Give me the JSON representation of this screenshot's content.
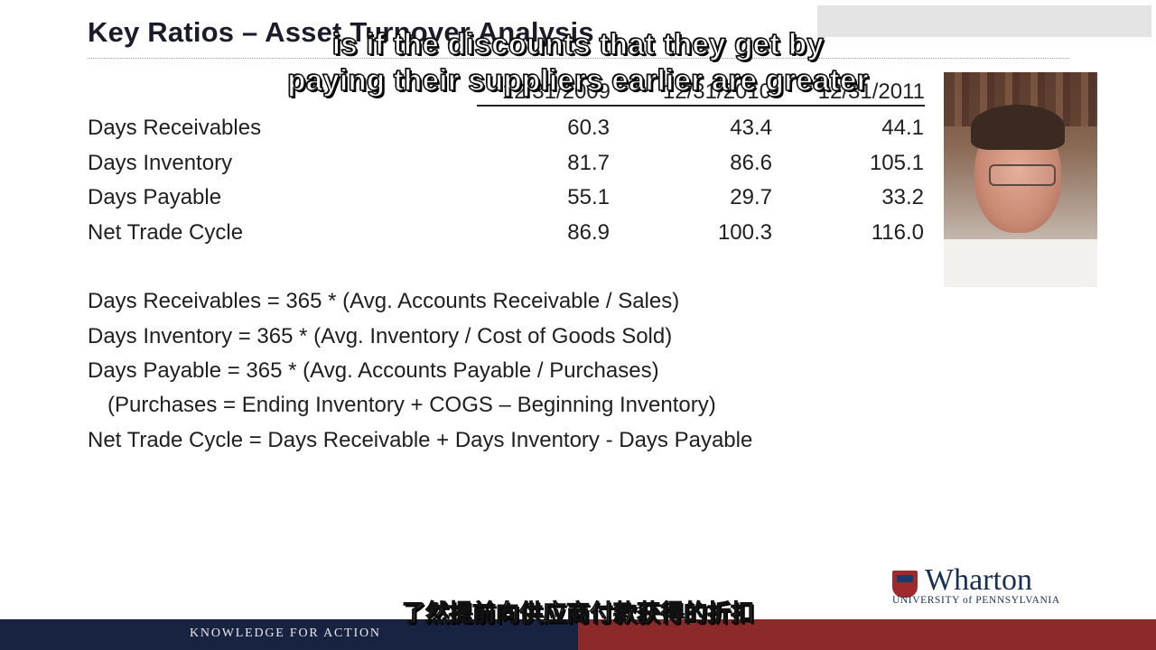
{
  "slide": {
    "title": "Key Ratios – Asset Turnover Analysis",
    "columns": [
      "12/31/2009",
      "12/31/2010",
      "12/31/2011"
    ],
    "rows": [
      {
        "label": "Days Receivables",
        "values": [
          "60.3",
          "43.4",
          "44.1"
        ]
      },
      {
        "label": "Days Inventory",
        "values": [
          "81.7",
          "86.6",
          "105.1"
        ]
      },
      {
        "label": "Days Payable",
        "values": [
          "55.1",
          "29.7",
          "33.2"
        ]
      },
      {
        "label": "Net Trade Cycle",
        "values": [
          "86.9",
          "100.3",
          "116.0"
        ]
      }
    ],
    "formulas": [
      "Days Receivables =  365 * (Avg. Accounts Receivable / Sales)",
      "Days Inventory = 365 * (Avg. Inventory / Cost of Goods Sold)",
      "Days Payable = 365 * (Avg. Accounts Payable / Purchases)",
      "(Purchases = Ending Inventory + COGS – Beginning Inventory)",
      "Net Trade Cycle = Days Receivable + Days Inventory - Days Payable"
    ]
  },
  "subtitles": {
    "english_line1": "is if the discounts that they get by",
    "english_line2": "paying their suppliers earlier are greater",
    "chinese": "了然提前向供应商付款获得的折扣"
  },
  "branding": {
    "logo_word": "Wharton",
    "logo_university": "UNIVERSITY of PENNSYLVANIA",
    "tagline": "KNOWLEDGE FOR ACTION"
  },
  "colors": {
    "footer_navy": "#182241",
    "footer_red": "#8c2a2a",
    "logo_blue": "#1b2f55",
    "shield_red": "#9e2a2b"
  }
}
